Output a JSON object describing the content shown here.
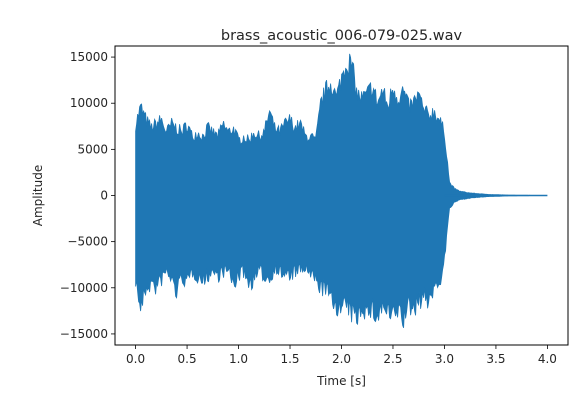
{
  "chart_data": {
    "type": "area",
    "title": "brass_acoustic_006-079-025.wav",
    "xlabel": "Time [s]",
    "ylabel": "Amplitude",
    "xlim": [
      -0.2,
      4.2
    ],
    "ylim": [
      -16200,
      16200
    ],
    "x_ticks": [
      0.0,
      0.5,
      1.0,
      1.5,
      2.0,
      2.5,
      3.0,
      3.5,
      4.0
    ],
    "x_tick_labels": [
      "0.0",
      "0.5",
      "1.0",
      "1.5",
      "2.0",
      "2.5",
      "3.0",
      "3.5",
      "4.0"
    ],
    "y_ticks": [
      -15000,
      -10000,
      -5000,
      0,
      5000,
      10000,
      15000
    ],
    "y_tick_labels": [
      "−15000",
      "−10000",
      "−5000",
      "0",
      "5000",
      "10000",
      "15000"
    ],
    "grid": false,
    "color": "#1f77b4",
    "series": [
      {
        "x": [
          0.0,
          0.05,
          0.1,
          0.15,
          0.2,
          0.25,
          0.3,
          0.35,
          0.4,
          0.45,
          0.5,
          0.55,
          0.6,
          0.65,
          0.7,
          0.75,
          0.8,
          0.85,
          0.9,
          0.95,
          1.0,
          1.05,
          1.1,
          1.15,
          1.2,
          1.25,
          1.3,
          1.35,
          1.4,
          1.45,
          1.5,
          1.55,
          1.6,
          1.65,
          1.7,
          1.75,
          1.8,
          1.85,
          1.9,
          1.95,
          2.0,
          2.05,
          2.1,
          2.15,
          2.2,
          2.25,
          2.3,
          2.35,
          2.4,
          2.45,
          2.5,
          2.55,
          2.6,
          2.65,
          2.7,
          2.75,
          2.8,
          2.85,
          2.9,
          2.95,
          3.0,
          3.05,
          3.1,
          3.15,
          3.2,
          3.25,
          3.3,
          3.35,
          3.4,
          3.45,
          3.5,
          3.55,
          3.6,
          3.65,
          3.7,
          4.0
        ],
        "upper": [
          8500,
          10500,
          9000,
          8000,
          8500,
          9000,
          7500,
          8500,
          8000,
          7500,
          8500,
          7000,
          7500,
          7000,
          8000,
          7500,
          7000,
          8500,
          7500,
          8000,
          6500,
          7000,
          6500,
          7500,
          7000,
          7500,
          10000,
          8000,
          7500,
          8500,
          9000,
          8000,
          8500,
          7000,
          7000,
          6500,
          11000,
          12500,
          13500,
          11500,
          14000,
          16000,
          15500,
          12000,
          11500,
          12000,
          13000,
          11000,
          12500,
          10500,
          13000,
          11500,
          12500,
          10500,
          11000,
          12000,
          10000,
          9500,
          10000,
          9000,
          7500,
          1500,
          800,
          500,
          400,
          300,
          250,
          200,
          150,
          120,
          100,
          80,
          60,
          40,
          30,
          0
        ],
        "lower": [
          -10000,
          -13500,
          -11000,
          -10500,
          -11000,
          -10000,
          -9000,
          -10000,
          -11500,
          -9500,
          -10500,
          -9000,
          -9500,
          -10000,
          -9500,
          -9000,
          -9500,
          -9000,
          -9000,
          -10500,
          -9500,
          -9000,
          -10500,
          -10000,
          -9000,
          -9500,
          -10000,
          -8500,
          -9000,
          -9500,
          -9500,
          -9000,
          -9000,
          -8500,
          -9500,
          -10000,
          -11000,
          -11000,
          -12500,
          -13000,
          -13500,
          -13000,
          -14000,
          -14500,
          -13000,
          -14000,
          -13500,
          -14500,
          -13000,
          -14000,
          -14500,
          -13500,
          -14800,
          -13000,
          -13500,
          -12500,
          -12000,
          -12500,
          -11000,
          -10500,
          -7500,
          -1500,
          -800,
          -500,
          -400,
          -300,
          -250,
          -200,
          -150,
          -120,
          -100,
          -80,
          -60,
          -40,
          -30,
          0
        ]
      }
    ]
  }
}
